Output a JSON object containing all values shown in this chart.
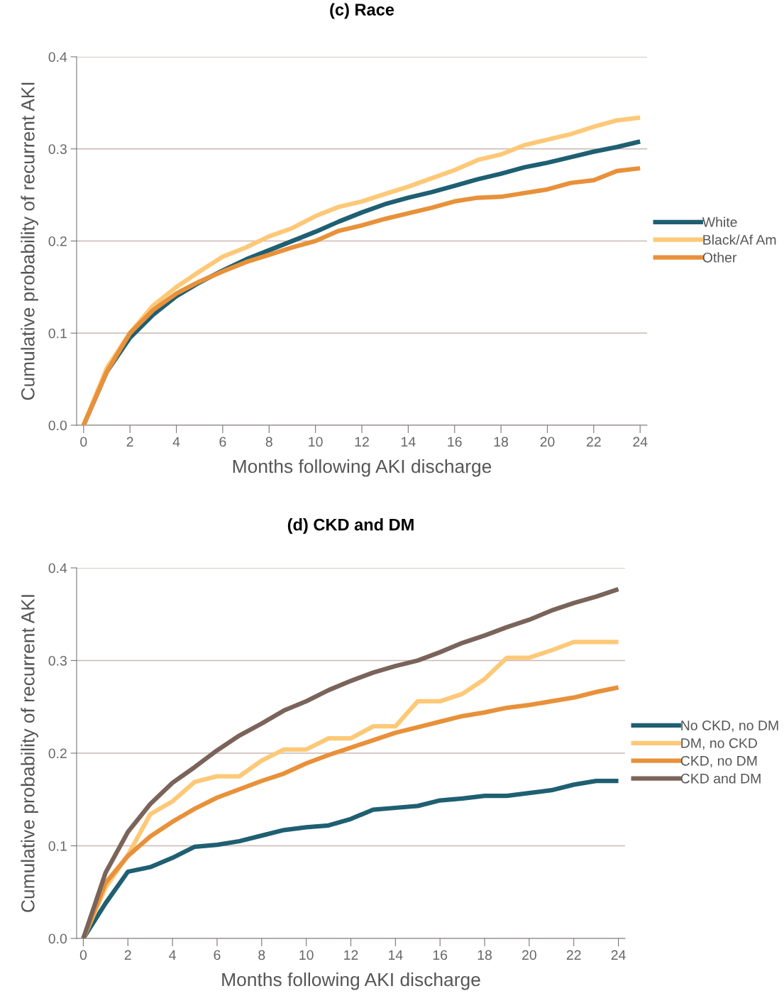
{
  "chart_data": [
    {
      "type": "line",
      "title": "(c) Race",
      "xlabel": "Months following AKI discharge",
      "ylabel": "Cumulative probability of recurrent AKI",
      "x": [
        0,
        1,
        2,
        3,
        4,
        5,
        6,
        7,
        8,
        9,
        10,
        11,
        12,
        13,
        14,
        15,
        16,
        17,
        18,
        19,
        20,
        21,
        22,
        23,
        24
      ],
      "xlim": [
        -0.3,
        24.3
      ],
      "xticks": [
        0,
        2,
        4,
        6,
        8,
        10,
        12,
        14,
        16,
        18,
        20,
        22,
        24
      ],
      "ylim": [
        0,
        0.4
      ],
      "yticks": [
        {
          "value": 0,
          "label": "0.0"
        },
        0.1,
        0.2,
        0.3,
        0.4
      ],
      "grid": "y",
      "legend": "right",
      "marker": "none",
      "line_style": "solid",
      "series": [
        {
          "name": "White",
          "color": "#1f5f72",
          "values": [
            0,
            0.058,
            0.095,
            0.12,
            0.14,
            0.155,
            0.168,
            0.18,
            0.19,
            0.2,
            0.21,
            0.221,
            0.231,
            0.24,
            0.247,
            0.253,
            0.26,
            0.267,
            0.273,
            0.28,
            0.285,
            0.291,
            0.297,
            0.302,
            0.308
          ]
        },
        {
          "name": "Black/Af Am",
          "color": "#fdc978",
          "values": [
            0,
            0.062,
            0.1,
            0.13,
            0.15,
            0.167,
            0.183,
            0.193,
            0.205,
            0.214,
            0.227,
            0.237,
            0.243,
            0.251,
            0.259,
            0.268,
            0.277,
            0.288,
            0.294,
            0.304,
            0.31,
            0.316,
            0.324,
            0.331,
            0.334
          ]
        },
        {
          "name": "Other",
          "color": "#e8913a",
          "values": [
            0,
            0.058,
            0.1,
            0.125,
            0.143,
            0.156,
            0.167,
            0.177,
            0.185,
            0.193,
            0.2,
            0.211,
            0.217,
            0.224,
            0.23,
            0.236,
            0.243,
            0.247,
            0.248,
            0.252,
            0.256,
            0.263,
            0.266,
            0.276,
            0.279
          ]
        }
      ]
    },
    {
      "type": "line",
      "title": "(d) CKD and DM",
      "xlabel": "Months following AKI discharge",
      "ylabel": "Cumulative probability of recurrent AKI",
      "x": [
        0,
        1,
        2,
        3,
        4,
        5,
        6,
        7,
        8,
        9,
        10,
        11,
        12,
        13,
        14,
        15,
        16,
        17,
        18,
        19,
        20,
        21,
        22,
        23,
        24
      ],
      "xlim": [
        -0.3,
        24.3
      ],
      "xticks": [
        0,
        2,
        4,
        6,
        8,
        10,
        12,
        14,
        16,
        18,
        20,
        22,
        24
      ],
      "ylim": [
        0,
        0.4
      ],
      "yticks": [
        {
          "value": 0,
          "label": "0.0"
        },
        0.1,
        0.2,
        0.3,
        0.4
      ],
      "grid": "y",
      "legend": "right",
      "marker": "none",
      "line_style": "solid",
      "series": [
        {
          "name": "No CKD, no DM",
          "color": "#1f5f72",
          "values": [
            0,
            0.038,
            0.072,
            0.077,
            0.087,
            0.099,
            0.101,
            0.105,
            0.111,
            0.117,
            0.12,
            0.122,
            0.129,
            0.139,
            0.141,
            0.143,
            0.149,
            0.151,
            0.154,
            0.154,
            0.157,
            0.16,
            0.166,
            0.17,
            0.17
          ]
        },
        {
          "name": "DM, no CKD",
          "color": "#fdc978",
          "values": [
            0,
            0.055,
            0.09,
            0.134,
            0.148,
            0.169,
            0.175,
            0.175,
            0.192,
            0.204,
            0.204,
            0.216,
            0.216,
            0.229,
            0.229,
            0.256,
            0.256,
            0.264,
            0.28,
            0.303,
            0.303,
            0.311,
            0.32,
            0.32,
            0.32
          ]
        },
        {
          "name": "CKD, no DM",
          "color": "#e8913a",
          "values": [
            0,
            0.06,
            0.089,
            0.11,
            0.126,
            0.14,
            0.152,
            0.161,
            0.17,
            0.178,
            0.189,
            0.198,
            0.206,
            0.214,
            0.222,
            0.228,
            0.234,
            0.24,
            0.244,
            0.249,
            0.252,
            0.256,
            0.26,
            0.266,
            0.271
          ]
        },
        {
          "name": "CKD and DM",
          "color": "#7a645a",
          "values": [
            0,
            0.071,
            0.115,
            0.145,
            0.168,
            0.185,
            0.203,
            0.219,
            0.232,
            0.246,
            0.256,
            0.268,
            0.278,
            0.287,
            0.294,
            0.3,
            0.309,
            0.319,
            0.327,
            0.336,
            0.344,
            0.354,
            0.362,
            0.369,
            0.377
          ]
        }
      ]
    }
  ]
}
